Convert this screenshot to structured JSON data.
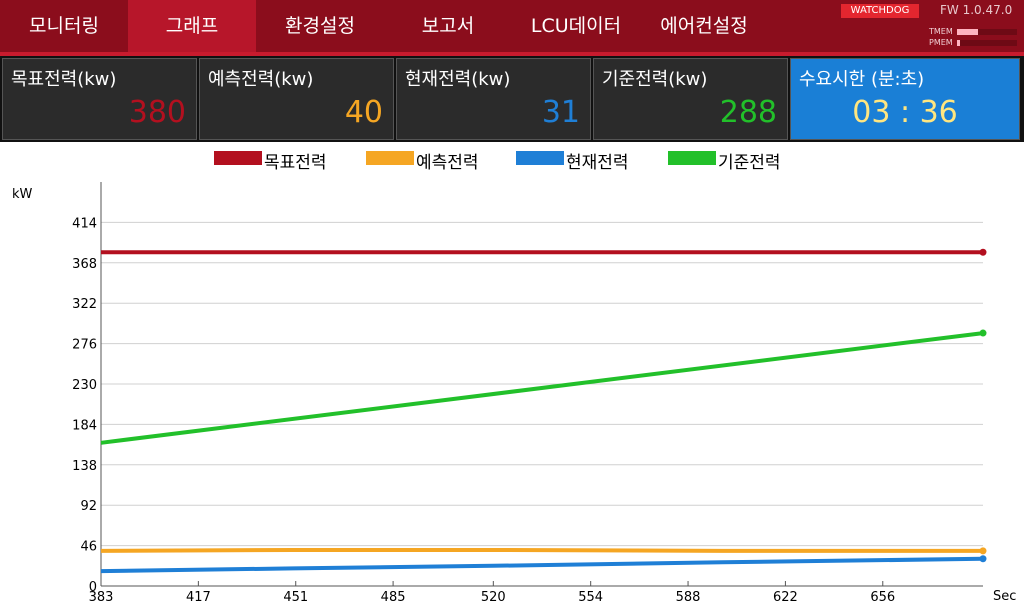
{
  "nav": {
    "tabs": [
      {
        "label": "모니터링",
        "active": false
      },
      {
        "label": "그래프",
        "active": true
      },
      {
        "label": "환경설정",
        "active": false
      },
      {
        "label": "보고서",
        "active": false
      },
      {
        "label": "LCU데이터",
        "active": false
      },
      {
        "label": "에어컨설정",
        "active": false
      }
    ],
    "watchdog": "WATCHDOG",
    "firmware": "FW 1.0.47.0",
    "tmem_label": "TMEM",
    "pmem_label": "PMEM",
    "tmem_level": 0.35,
    "pmem_level": 0.05
  },
  "stats": [
    {
      "label": "목표전력(kw)",
      "value": "380",
      "color": "#b3101f"
    },
    {
      "label": "예측전력(kw)",
      "value": "40",
      "color": "#f5a623"
    },
    {
      "label": "현재전력(kw)",
      "value": "31",
      "color": "#1f7fd6"
    },
    {
      "label": "기준전력(kw)",
      "value": "288",
      "color": "#22c02a"
    },
    {
      "label": "수요시한 (분:초)",
      "value": "03 : 36",
      "color": "#ffe680"
    }
  ],
  "legend": [
    {
      "name": "목표전력",
      "color": "#b3101f"
    },
    {
      "name": "예측전력",
      "color": "#f5a623"
    },
    {
      "name": "현재전력",
      "color": "#1f7fd6"
    },
    {
      "name": "기준전력",
      "color": "#22c02a"
    }
  ],
  "chart_data": {
    "type": "line",
    "ylabel": "kW",
    "xlabel": "Sec",
    "xlim": [
      383,
      691
    ],
    "ylim": [
      0,
      460
    ],
    "x_ticks": [
      383,
      417,
      451,
      485,
      520,
      554,
      588,
      622,
      656
    ],
    "y_ticks": [
      0,
      46,
      92,
      138,
      184,
      230,
      276,
      322,
      368,
      414
    ],
    "grid": true,
    "legend_position": "top",
    "series": [
      {
        "name": "목표전력",
        "color": "#b3101f",
        "x": [
          383,
          691
        ],
        "y": [
          380,
          380
        ]
      },
      {
        "name": "예측전력",
        "color": "#f5a623",
        "x": [
          383,
          450,
          520,
          600,
          691
        ],
        "y": [
          40,
          41,
          41,
          40,
          40
        ]
      },
      {
        "name": "현재전력",
        "color": "#1f7fd6",
        "x": [
          383,
          450,
          520,
          600,
          691
        ],
        "y": [
          17,
          20,
          23,
          27,
          31
        ]
      },
      {
        "name": "기준전력",
        "color": "#22c02a",
        "x": [
          383,
          691
        ],
        "y": [
          163,
          288
        ]
      }
    ]
  }
}
